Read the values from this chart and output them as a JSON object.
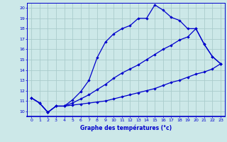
{
  "xlabel": "Graphe des températures (°c)",
  "bg_color": "#cce8e8",
  "line_color": "#0000cc",
  "grid_color": "#aacccc",
  "xlim": [
    -0.5,
    23.5
  ],
  "ylim": [
    9.5,
    20.5
  ],
  "xticks": [
    0,
    1,
    2,
    3,
    4,
    5,
    6,
    7,
    8,
    9,
    10,
    11,
    12,
    13,
    14,
    15,
    16,
    17,
    18,
    19,
    20,
    21,
    22,
    23
  ],
  "yticks": [
    10,
    11,
    12,
    13,
    14,
    15,
    16,
    17,
    18,
    19,
    20
  ],
  "main_line": [
    11.3,
    10.8,
    9.9,
    10.5,
    10.5,
    11.1,
    11.9,
    13.0,
    15.2,
    16.7,
    17.5,
    18.0,
    18.3,
    19.0,
    19.0,
    20.3,
    19.8,
    19.1,
    18.8,
    18.0,
    18.0,
    16.5,
    15.3,
    14.6
  ],
  "line2": [
    11.3,
    10.8,
    9.9,
    10.5,
    10.5,
    10.6,
    10.7,
    10.8,
    10.9,
    11.0,
    11.2,
    11.4,
    11.6,
    11.8,
    12.0,
    12.2,
    12.5,
    12.8,
    13.0,
    13.3,
    13.6,
    13.8,
    14.1,
    14.6
  ],
  "line3": [
    11.3,
    10.8,
    9.9,
    10.5,
    10.5,
    10.8,
    11.2,
    11.6,
    12.1,
    12.6,
    13.2,
    13.7,
    14.1,
    14.5,
    15.0,
    15.5,
    16.0,
    16.4,
    16.9,
    17.2,
    18.0,
    16.5,
    15.3,
    14.6
  ]
}
